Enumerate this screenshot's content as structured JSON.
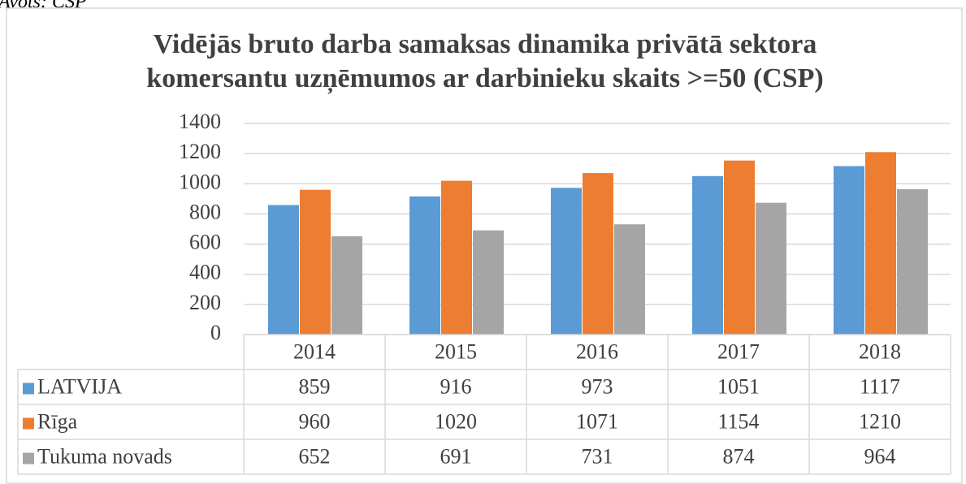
{
  "source": "Avots: CSP",
  "chart_data": {
    "type": "bar",
    "title": "Vidējās bruto darba samaksas dinamika privātā sektora komersantu uzņēmumos ar darbinieku skaits >=50 (CSP)",
    "title_lines": [
      "Vidējās bruto darba samaksas dinamika privātā sektora",
      "komersantu uzņēmumos ar darbinieku skaits >=50 (CSP)"
    ],
    "categories": [
      "2014",
      "2015",
      "2016",
      "2017",
      "2018"
    ],
    "series": [
      {
        "name": "LATVIJA",
        "color": "#5b9bd5",
        "values": [
          859,
          916,
          973,
          1051,
          1117
        ]
      },
      {
        "name": "Rīga",
        "color": "#ed7d31",
        "values": [
          960,
          1020,
          1071,
          1154,
          1210
        ]
      },
      {
        "name": "Tukuma novads",
        "color": "#a5a5a5",
        "values": [
          652,
          691,
          731,
          874,
          964
        ]
      }
    ],
    "ylim": [
      0,
      1400
    ],
    "yticks": [
      0,
      200,
      400,
      600,
      800,
      1000,
      1200,
      1400
    ],
    "grid": true,
    "data_table": true
  }
}
